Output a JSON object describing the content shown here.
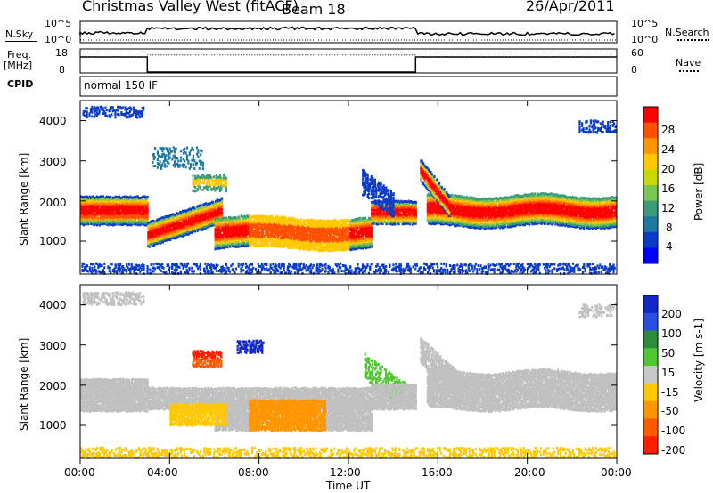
{
  "header": {
    "station": "Christmas Valley West (fitACF)",
    "beam": "Beam 18",
    "date": "26/Apr/2011"
  },
  "noise_panel": {
    "left_label": "N.Sky",
    "right_label": "N.Search",
    "left_ticks": [
      "10^5",
      "10^0"
    ],
    "right_ticks": [
      "10^5",
      "10^0"
    ]
  },
  "freq_panel": {
    "left_label_line1": "Freq.",
    "left_label_line2": "[MHz]",
    "left_ticks": [
      "18",
      "8"
    ],
    "right_label": "Nave",
    "right_ticks": [
      "60",
      "0"
    ]
  },
  "cpid_panel": {
    "label": "CPID",
    "mode": "normal 150 IF"
  },
  "chart_data": [
    {
      "type": "heatmap",
      "name": "power",
      "ylabel": "Slant Range [km]",
      "ylim": [
        180,
        4500
      ],
      "yticks": [
        "4000",
        "3000",
        "2000",
        "1000"
      ],
      "ytick_values": [
        4000,
        3000,
        2000,
        1000
      ],
      "colorbar_label": "Power [dB]",
      "colorbar_ticks": [
        "28",
        "24",
        "20",
        "16",
        "12",
        "8",
        "4"
      ],
      "colorbar_colors": [
        "#ff0000",
        "#ff5000",
        "#ff9600",
        "#ffc800",
        "#c8d800",
        "#78c850",
        "#3c9c78",
        "#1e78a0",
        "#0a3cc8",
        "#0000ff"
      ],
      "ground_scatter_color": "#c0c0c0"
    },
    {
      "type": "heatmap",
      "name": "velocity",
      "ylabel": "Slant Range [km]",
      "ylim": [
        180,
        4500
      ],
      "yticks": [
        "4000",
        "3000",
        "2000",
        "1000"
      ],
      "ytick_values": [
        4000,
        3000,
        2000,
        1000
      ],
      "colorbar_label": "Velocity [m s-1]",
      "colorbar_ticks": [
        "200",
        "100",
        "50",
        "15",
        "-15",
        "-50",
        "-100",
        "-200"
      ],
      "colorbar_colors": [
        "#1428c8",
        "#2850e0",
        "#2d8c3c",
        "#50c832",
        "#c8c8c8",
        "#ffc800",
        "#ff9600",
        "#ff5a00",
        "#ff1e00"
      ],
      "ground_scatter_color": "#c0c0c0"
    }
  ],
  "time_axis": {
    "label": "Time UT",
    "ticks": [
      "00:00",
      "04:00",
      "08:00",
      "12:00",
      "16:00",
      "20:00",
      "00:00"
    ],
    "tick_hours": [
      0,
      4,
      8,
      12,
      16,
      20,
      24
    ]
  },
  "freq_series": {
    "freq_segments_hours": [
      [
        0,
        3,
        15
      ],
      [
        3,
        15,
        8
      ],
      [
        15,
        24,
        15
      ]
    ],
    "nave_segments_hours": [
      [
        0,
        3,
        50
      ],
      [
        3,
        15,
        45
      ],
      [
        15,
        24,
        50
      ]
    ]
  }
}
